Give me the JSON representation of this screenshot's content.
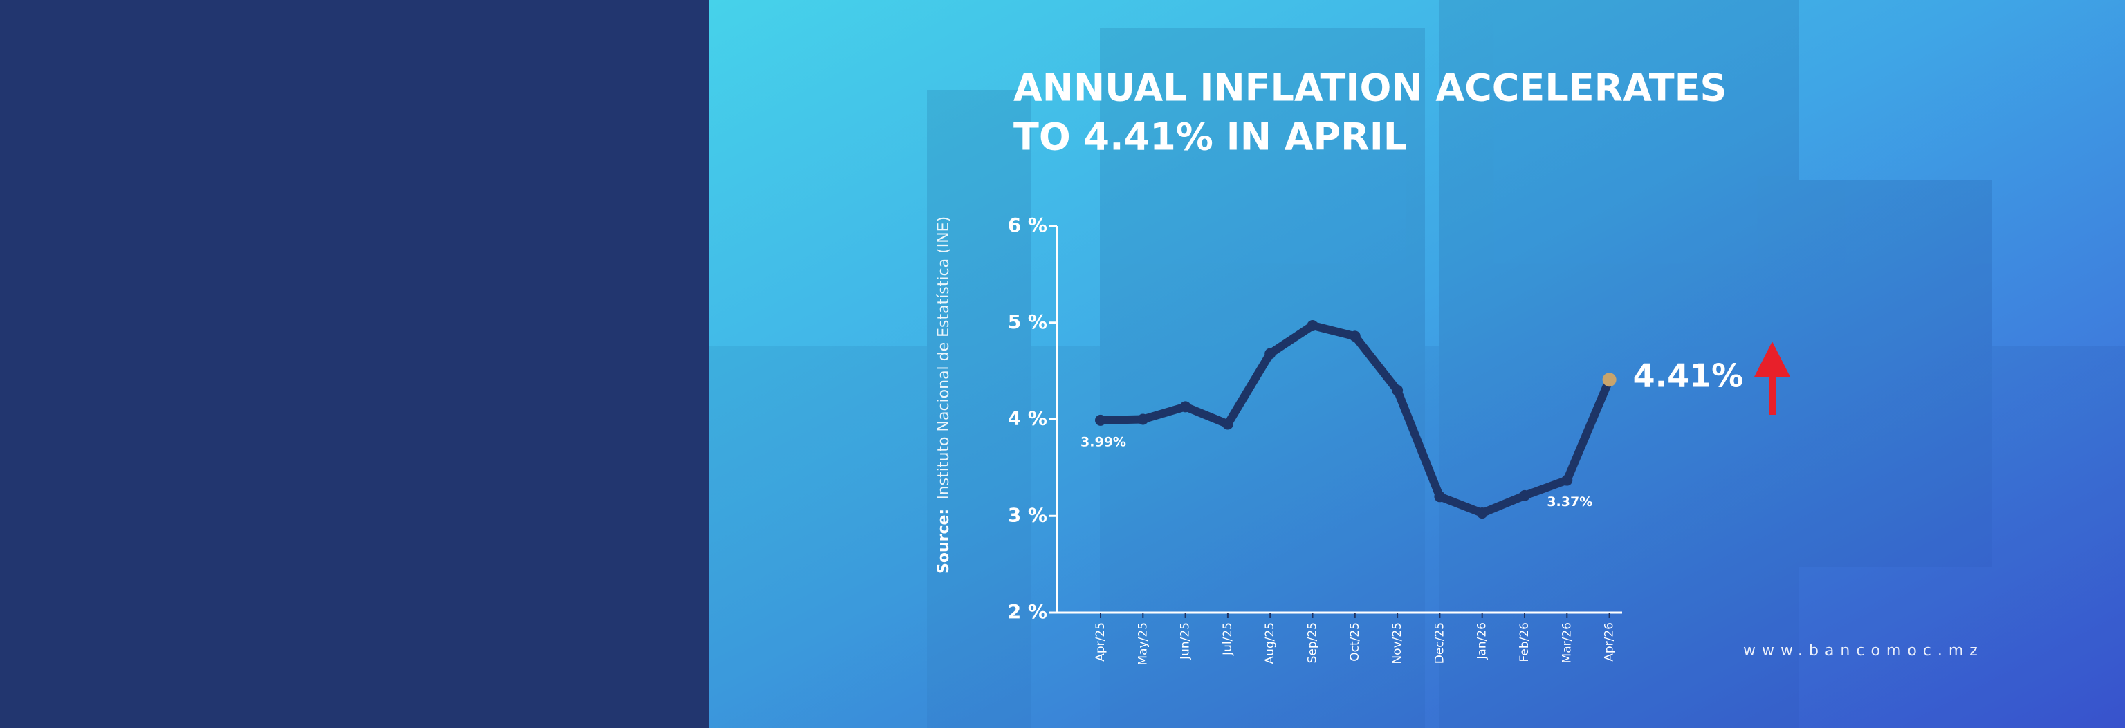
{
  "chart_data": {
    "type": "line",
    "title": [
      "ANNUAL INFLATION ACCELERATES",
      "TO 4.41% IN APRIL"
    ],
    "source_label": "Source:",
    "source": "Instituto Nacional de Estatística (INE)",
    "website": "www.bancomoc.mz",
    "categories": [
      "Apr/25",
      "May/25",
      "Jun/25",
      "Jul/25",
      "Aug/25",
      "Sep/25",
      "Oct/25",
      "Nov/25",
      "Dec/25",
      "Jan/26",
      "Feb/26",
      "Mar/26",
      "Apr/26"
    ],
    "values": [
      3.99,
      4.0,
      4.13,
      3.95,
      4.68,
      4.97,
      4.86,
      4.3,
      3.2,
      3.03,
      3.21,
      3.37,
      4.41
    ],
    "value_labels": [
      "3.99%",
      null,
      null,
      null,
      null,
      null,
      null,
      null,
      null,
      null,
      null,
      "3.37%",
      "4.41%"
    ],
    "color": "#1d3466",
    "last_point_color": "#c8a46c",
    "ylim": [
      2,
      6
    ],
    "yticks": [
      {
        "value": 2,
        "label": "2 %"
      },
      {
        "value": 3,
        "label": "3 %"
      },
      {
        "value": 4,
        "label": "4 %"
      },
      {
        "value": 5,
        "label": "5 %"
      },
      {
        "value": 6,
        "label": "6 %"
      }
    ]
  }
}
